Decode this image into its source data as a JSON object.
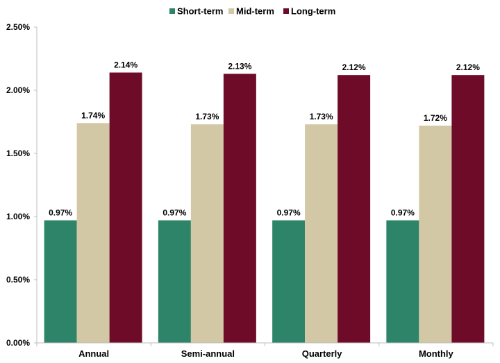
{
  "chart_data": {
    "type": "bar",
    "title": "",
    "xlabel": "",
    "ylabel": "",
    "categories": [
      "Annual",
      "Semi-annual",
      "Quarterly",
      "Monthly"
    ],
    "series": [
      {
        "name": "Short-term",
        "color": "#2E8469",
        "values": [
          0.97,
          0.97,
          0.97,
          0.97
        ],
        "labels": [
          "0.97%",
          "0.97%",
          "0.97%",
          "0.97%"
        ]
      },
      {
        "name": "Mid-term",
        "color": "#D3C8A6",
        "values": [
          1.74,
          1.73,
          1.73,
          1.72
        ],
        "labels": [
          "1.74%",
          "1.73%",
          "1.73%",
          "1.72%"
        ]
      },
      {
        "name": "Long-term",
        "color": "#6E0B29",
        "values": [
          2.14,
          2.13,
          2.12,
          2.12
        ],
        "labels": [
          "2.14%",
          "2.13%",
          "2.12%",
          "2.12%"
        ]
      }
    ],
    "ylim": [
      0,
      2.5
    ],
    "yticks": [
      0,
      0.5,
      1.0,
      1.5,
      2.0,
      2.5
    ],
    "ytick_labels": [
      "0.00%",
      "0.50%",
      "1.00%",
      "1.50%",
      "2.00%",
      "2.50%"
    ],
    "grid": false,
    "legend_position": "top-center"
  }
}
